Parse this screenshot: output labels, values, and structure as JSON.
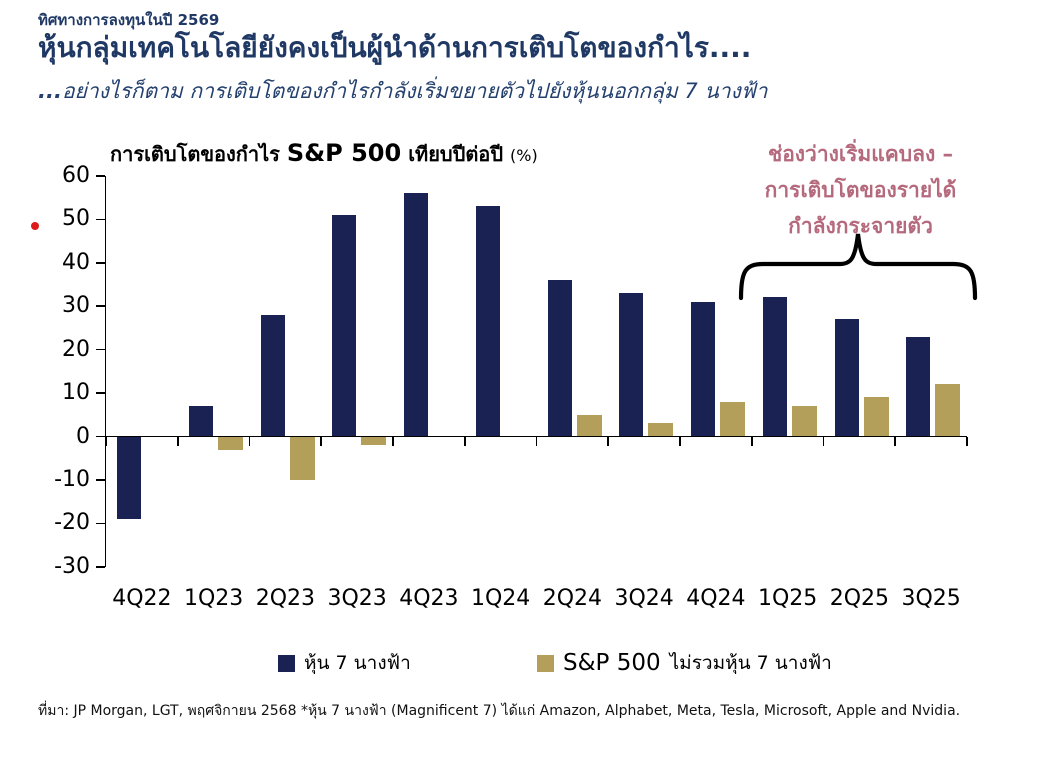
{
  "header": {
    "eyebrow": "ทิศทางการลงทุนในปี 2569",
    "title": "หุ้นกลุ่มเทคโนโลยียังคงเป็นผู้นำด้านการเติบโตของกำไร....",
    "subtitle_dots": "...",
    "subtitle_text": "อย่างไรก็ตาม การเติบโตของกำไรกำลังเริ่มขยายตัวไปยังหุ้นนอกกลุ่ม 7 นางฟ้า"
  },
  "chart_title": {
    "prefix": "การเติบโตของกำไร",
    "emphasis": "S&P 500",
    "suffix": "เทียบปีต่อปี",
    "unit": "(%)"
  },
  "annotation": {
    "lines": [
      "ช่องว่างเริ่มแคบลง –",
      "การเติบโตของรายได้",
      "กำลังกระจายตัว"
    ],
    "color": "#b5697c"
  },
  "legend": {
    "items": [
      {
        "label": "หุ้น 7 นางฟ้า",
        "color": "#1a2254"
      },
      {
        "emphasis": "S&P 500",
        "rest": "ไม่รวมหุ้น 7 นางฟ้า",
        "color": "#b39e5a"
      }
    ]
  },
  "footer": {
    "source": "ที่มา: JP Morgan, LGT, พฤศจิกายน 2568 *หุ้น 7 นางฟ้า (Magnificent 7) ได้แก่ Amazon, Alphabet, Meta, Tesla, Microsoft, Apple and Nvidia."
  },
  "colors": {
    "mag7_bar": "#1a2254",
    "sp500_ex_bar": "#b39e5a",
    "title_navy": "#1f3864",
    "annotation_pink": "#b5697c",
    "red_dot": "#de1b1b",
    "axis": "#000000"
  },
  "chart_data": {
    "type": "bar",
    "title": "การเติบโตของกำไร S&P 500 เทียบปีต่อปี (%)",
    "xlabel": "",
    "ylabel": "",
    "ylim": [
      -30,
      60
    ],
    "yticks": [
      60,
      50,
      40,
      30,
      20,
      10,
      0,
      -10,
      -20,
      -30
    ],
    "grid": false,
    "legend_position": "bottom",
    "categories": [
      "4Q22",
      "1Q23",
      "2Q23",
      "3Q23",
      "4Q23",
      "1Q24",
      "2Q24",
      "3Q24",
      "4Q24",
      "1Q25",
      "2Q25",
      "3Q25"
    ],
    "series": [
      {
        "name": "หุ้น 7 นางฟ้า",
        "color": "#1a2254",
        "values": [
          -19,
          7,
          28,
          51,
          56,
          53,
          36,
          33,
          31,
          32,
          27,
          23
        ]
      },
      {
        "name": "S&P 500 ไม่รวมหุ้น 7 นางฟ้า",
        "color": "#b39e5a",
        "values": [
          0,
          -3,
          -10,
          -2,
          0,
          0,
          5,
          3,
          8,
          7,
          9,
          12
        ]
      }
    ],
    "annotation_text": "ช่องว่างเริ่มแคบลง – การเติบโตของรายได้กำลังกระจายตัว",
    "annotation_covers_categories": [
      "1Q25",
      "2Q25",
      "3Q25"
    ]
  }
}
